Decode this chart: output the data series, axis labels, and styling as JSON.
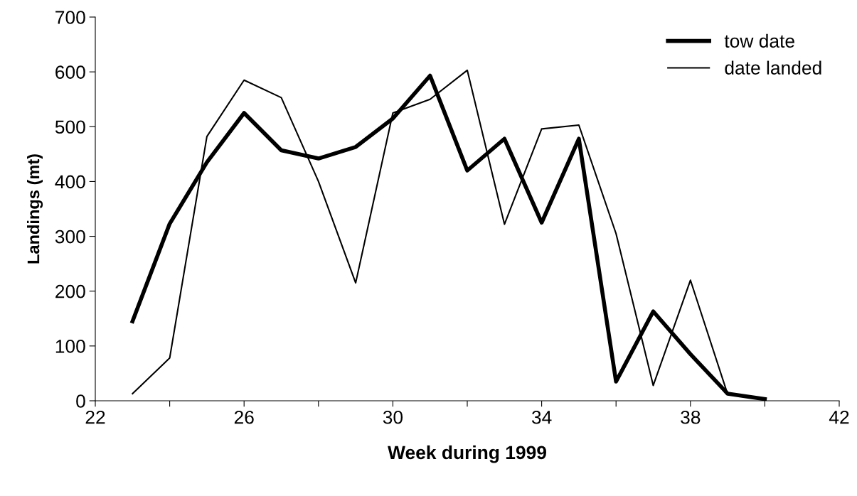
{
  "chart_data": {
    "type": "line",
    "xlabel": "Week during 1999",
    "ylabel": "Landings (mt)",
    "x": [
      23,
      24,
      25,
      26,
      27,
      28,
      29,
      30,
      31,
      32,
      33,
      34,
      35,
      36,
      37,
      38,
      39,
      40
    ],
    "series": [
      {
        "name": "tow date",
        "color": "#000000",
        "values": [
          145,
          323,
          435,
          525,
          457,
          442,
          463,
          515,
          593,
          420,
          478,
          325,
          478,
          35,
          163,
          85,
          13,
          3
        ]
      },
      {
        "name": "date landed",
        "color": "#000000",
        "values": [
          13,
          78,
          482,
          585,
          553,
          400,
          215,
          525,
          550,
          603,
          322,
          496,
          503,
          305,
          28,
          220,
          12,
          null
        ]
      }
    ],
    "xlim": [
      22,
      42
    ],
    "xticks": [
      22,
      {
        "value": 24,
        "label": null
      },
      26,
      {
        "value": 28,
        "label": null
      },
      30,
      {
        "value": 32,
        "label": null
      },
      34,
      {
        "value": 36,
        "label": null
      },
      38,
      {
        "value": 40,
        "label": null
      },
      42
    ],
    "ylim": [
      0,
      700
    ],
    "yticks": [
      0,
      100,
      200,
      300,
      400,
      500,
      600,
      700
    ],
    "grid": false,
    "legend": "top right",
    "marker": "none",
    "line_style": "solid"
  }
}
